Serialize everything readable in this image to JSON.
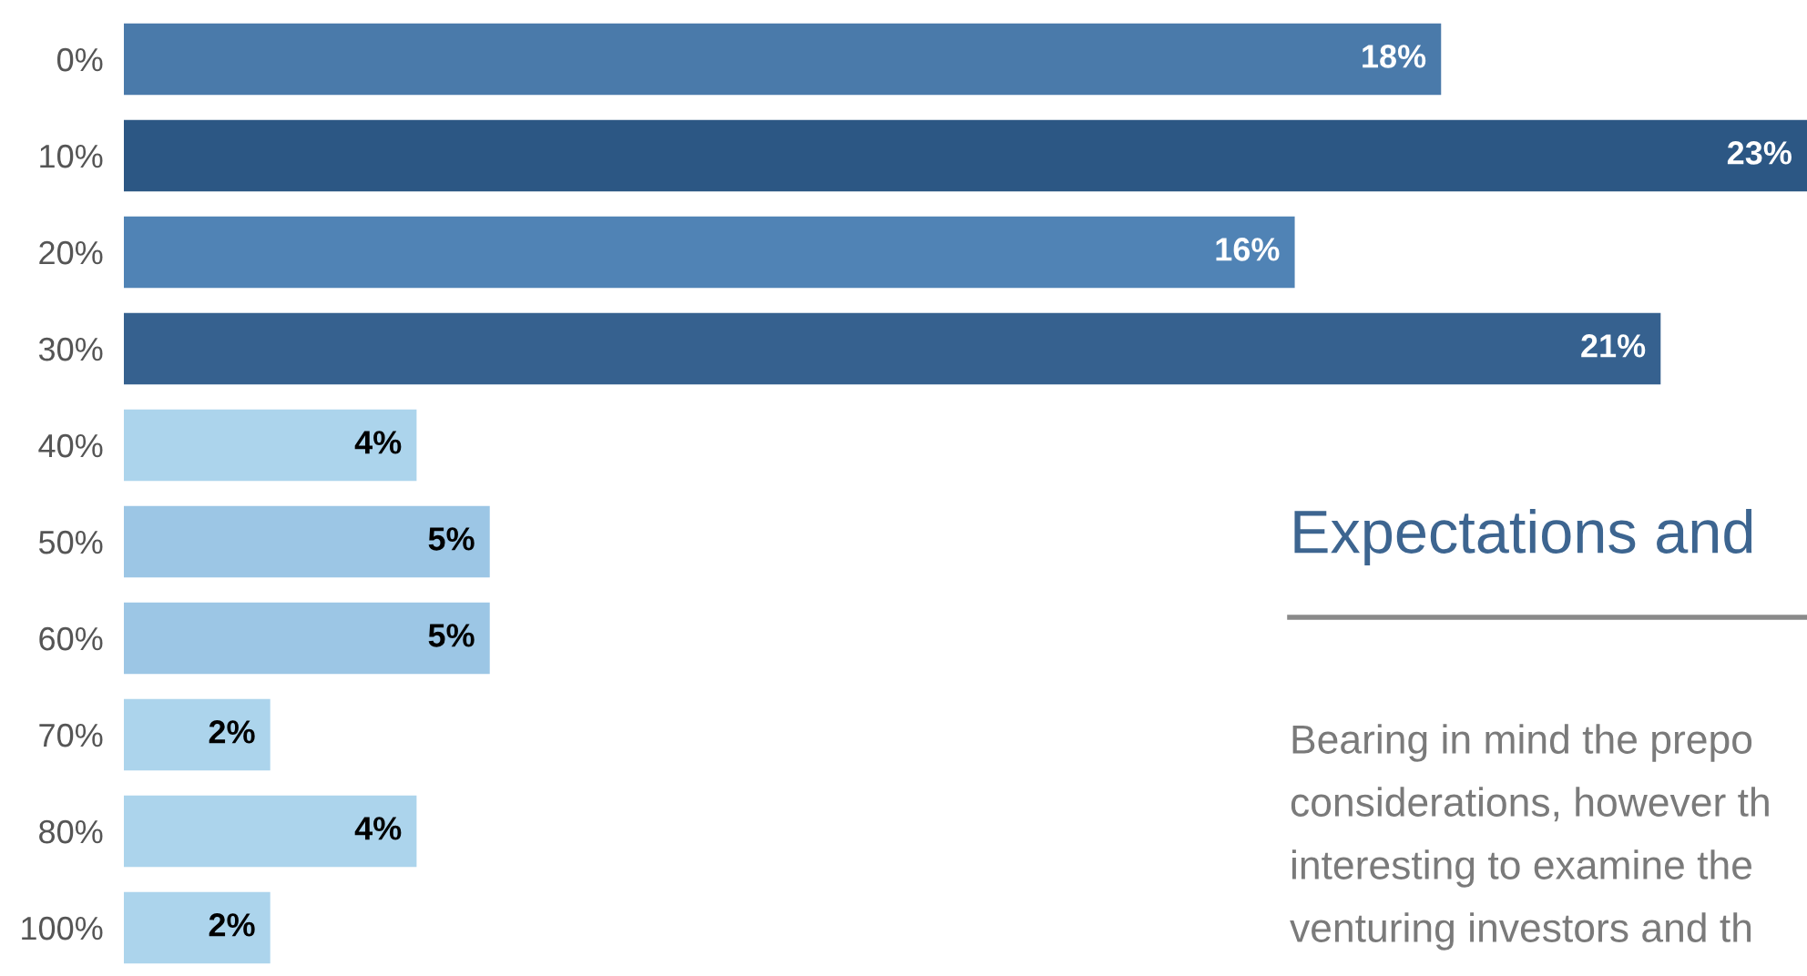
{
  "chart_data": {
    "type": "bar",
    "orientation": "horizontal",
    "categories": [
      "0%",
      "10%",
      "20%",
      "30%",
      "40%",
      "50%",
      "60%",
      "70%",
      "80%",
      "100%"
    ],
    "values": [
      18,
      23,
      16,
      21,
      4,
      5,
      5,
      2,
      4,
      2
    ],
    "colors": [
      "#4a7aaa",
      "#2c5784",
      "#5083b5",
      "#36618f",
      "#acd4ec",
      "#9cc6e5",
      "#9cc6e5",
      "#acd4ec",
      "#acd4ec",
      "#acd4ec"
    ],
    "value_labels": [
      "18%",
      "23%",
      "16%",
      "21%",
      "4%",
      "5%",
      "5%",
      "2%",
      "4%",
      "2%"
    ],
    "annotations": [
      "Expectations and",
      "Bearing in mind the prepo",
      "considerations, however th",
      "interesting to examine the",
      "venturing investors and th"
    ],
    "grid": false,
    "legend": false
  }
}
